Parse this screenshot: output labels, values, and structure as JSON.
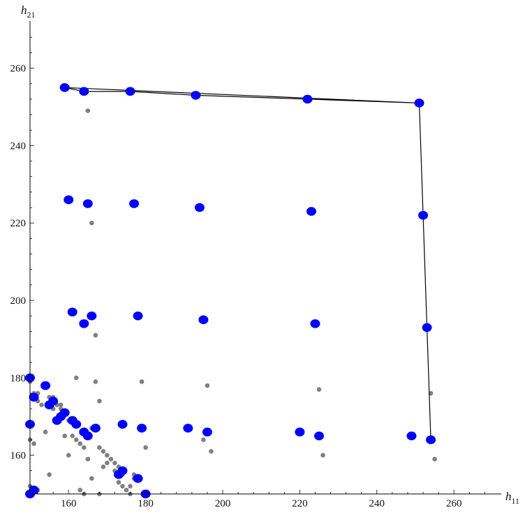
{
  "chart_data": {
    "type": "scatter",
    "title": "",
    "xlabel": {
      "base": "h",
      "sub": "11"
    },
    "ylabel": {
      "base": "h",
      "sub": "21"
    },
    "xlim": [
      150,
      270
    ],
    "ylim": [
      150,
      270
    ],
    "xticks": [
      160,
      180,
      200,
      220,
      240,
      260
    ],
    "yticks": [
      160,
      180,
      200,
      220,
      240,
      260
    ],
    "grid": false,
    "colors": {
      "highlight": "#0000ff",
      "background": "#808080",
      "line": "#000000",
      "axis": "#000000"
    },
    "highlight_points": [
      [
        159,
        255
      ],
      [
        164,
        254
      ],
      [
        176,
        254
      ],
      [
        193,
        253
      ],
      [
        222,
        252
      ],
      [
        251,
        251
      ],
      [
        160,
        226
      ],
      [
        165,
        225
      ],
      [
        177,
        225
      ],
      [
        194,
        224
      ],
      [
        223,
        223
      ],
      [
        252,
        222
      ],
      [
        161,
        197
      ],
      [
        164,
        194
      ],
      [
        166,
        196
      ],
      [
        178,
        196
      ],
      [
        195,
        195
      ],
      [
        224,
        194
      ],
      [
        253,
        193
      ],
      [
        150,
        180
      ],
      [
        151,
        175
      ],
      [
        154,
        178
      ],
      [
        155,
        173
      ],
      [
        156,
        174
      ],
      [
        157,
        169
      ],
      [
        158,
        170
      ],
      [
        159,
        171
      ],
      [
        161,
        169
      ],
      [
        162,
        168
      ],
      [
        164,
        166
      ],
      [
        165,
        165
      ],
      [
        167,
        167
      ],
      [
        174,
        168
      ],
      [
        179,
        167
      ],
      [
        191,
        167
      ],
      [
        196,
        166
      ],
      [
        220,
        166
      ],
      [
        225,
        165
      ],
      [
        249,
        165
      ],
      [
        254,
        164
      ],
      [
        150,
        168
      ],
      [
        173,
        155
      ],
      [
        174,
        156
      ],
      [
        178,
        154
      ],
      [
        150,
        150
      ],
      [
        151,
        151
      ],
      [
        180,
        150
      ]
    ],
    "background_points": [
      [
        165,
        249
      ],
      [
        166,
        220
      ],
      [
        167,
        191
      ],
      [
        162,
        180
      ],
      [
        167,
        179
      ],
      [
        179,
        179
      ],
      [
        196,
        178
      ],
      [
        225,
        177
      ],
      [
        254,
        176
      ],
      [
        150,
        179
      ],
      [
        151,
        176
      ],
      [
        152,
        176
      ],
      [
        152,
        174
      ],
      [
        153,
        173
      ],
      [
        155,
        175
      ],
      [
        156,
        175
      ],
      [
        157,
        173
      ],
      [
        158,
        173
      ],
      [
        158,
        172
      ],
      [
        156,
        172
      ],
      [
        154,
        166
      ],
      [
        155,
        155
      ],
      [
        159,
        165
      ],
      [
        160,
        160
      ],
      [
        160,
        169
      ],
      [
        161,
        165
      ],
      [
        162,
        164
      ],
      [
        163,
        163
      ],
      [
        164,
        162
      ],
      [
        165,
        159
      ],
      [
        166,
        154
      ],
      [
        166,
        167
      ],
      [
        168,
        174
      ],
      [
        168,
        162
      ],
      [
        169,
        161
      ],
      [
        170,
        160
      ],
      [
        171,
        159
      ],
      [
        172,
        158
      ],
      [
        173,
        157
      ],
      [
        173,
        153
      ],
      [
        174,
        152
      ],
      [
        175,
        151
      ],
      [
        176,
        150
      ],
      [
        176,
        152
      ],
      [
        177,
        155
      ],
      [
        180,
        162
      ],
      [
        195,
        164
      ],
      [
        197,
        161
      ],
      [
        226,
        160
      ],
      [
        255,
        159
      ],
      [
        150,
        164
      ],
      [
        151,
        163
      ],
      [
        150,
        152
      ],
      [
        152,
        151
      ],
      [
        163,
        151
      ],
      [
        168,
        150
      ],
      [
        164,
        150
      ],
      [
        177,
        154
      ],
      [
        169,
        157
      ],
      [
        170,
        158
      ],
      [
        172,
        156
      ],
      [
        174,
        155
      ]
    ],
    "hull_line": [
      [
        159,
        255
      ],
      [
        251,
        251
      ],
      [
        254,
        164
      ],
      [
        253,
        193
      ],
      [
        252,
        222
      ],
      [
        251,
        251
      ],
      [
        222,
        252
      ],
      [
        193,
        253
      ],
      [
        176,
        254
      ],
      [
        164,
        254
      ],
      [
        159,
        255
      ]
    ]
  }
}
